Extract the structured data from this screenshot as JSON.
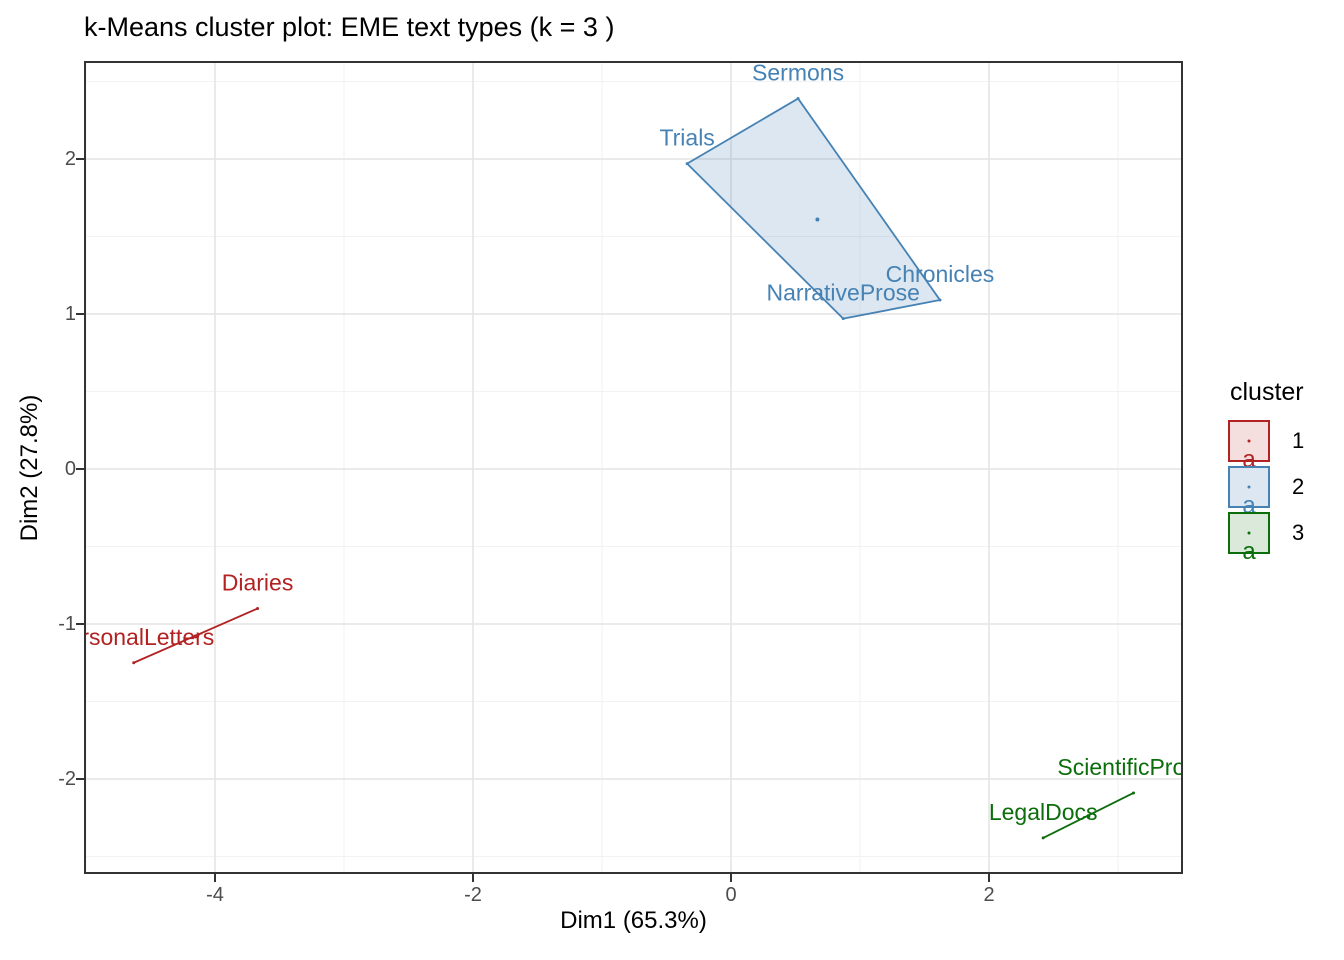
{
  "title": "k-Means cluster plot: EME text types (k = 3 )",
  "axes": {
    "x": {
      "label": "Dim1 (65.3%)",
      "ticks": [
        -4,
        -2,
        0,
        2
      ],
      "minor": [
        -5,
        -3,
        -1,
        1,
        3
      ]
    },
    "y": {
      "label": "Dim2 (27.8%)",
      "ticks": [
        -2,
        -1,
        0,
        1,
        2
      ],
      "minor": [
        -2.5,
        -1.5,
        -0.5,
        0.5,
        1.5,
        2.5
      ]
    }
  },
  "legend": {
    "title": "cluster",
    "glyph": "a",
    "entries": [
      {
        "label": "1"
      },
      {
        "label": "2"
      },
      {
        "label": "3"
      }
    ]
  },
  "colors": {
    "background": "#FFFFFF",
    "panel_border": "#333333",
    "grid_major": "#E4E4E4",
    "grid_minor": "#F2F2F2",
    "tick_label": "#4D4D4D",
    "text": "#000000"
  },
  "chart_data": {
    "type": "scatter",
    "title": "k-Means cluster plot: EME text types (k = 3 )",
    "xlabel": "Dim1 (65.3%)",
    "ylabel": "Dim2 (27.8%)",
    "xlim": [
      -5.0,
      3.5
    ],
    "ylim": [
      -2.6,
      2.6
    ],
    "grid": true,
    "legend_position": "right",
    "clusters": [
      {
        "id": "1",
        "color": "#B22222",
        "fill": "rgba(178,34,34,0.15)",
        "points": [
          {
            "label": "PersonalLetters",
            "x": -4.63,
            "y": -1.25
          },
          {
            "label": "Diaries",
            "x": -3.67,
            "y": -0.9
          }
        ],
        "hull": [
          "PersonalLetters",
          "Diaries"
        ],
        "centroid": {
          "x": -4.15,
          "y": -1.08
        }
      },
      {
        "id": "2",
        "color": "#4682B4",
        "fill": "rgba(70,130,180,0.19)",
        "points": [
          {
            "label": "Sermons",
            "x": 0.52,
            "y": 2.39
          },
          {
            "label": "Trials",
            "x": -0.34,
            "y": 1.97
          },
          {
            "label": "NarrativeProse",
            "x": 0.87,
            "y": 0.97
          },
          {
            "label": "Chronicles",
            "x": 1.62,
            "y": 1.09
          }
        ],
        "hull": [
          "Sermons",
          "Trials",
          "NarrativeProse",
          "Chronicles"
        ],
        "centroid": {
          "x": 0.67,
          "y": 1.61
        }
      },
      {
        "id": "3",
        "color": "#0B6E0B",
        "fill": "rgba(11,110,11,0.15)",
        "points": [
          {
            "label": "LegalDocs",
            "x": 2.42,
            "y": -2.38
          },
          {
            "label": "ScientificProse",
            "x": 3.12,
            "y": -2.09
          }
        ],
        "hull": [
          "LegalDocs",
          "ScientificProse"
        ],
        "centroid": {
          "x": 2.77,
          "y": -2.24
        }
      }
    ]
  }
}
